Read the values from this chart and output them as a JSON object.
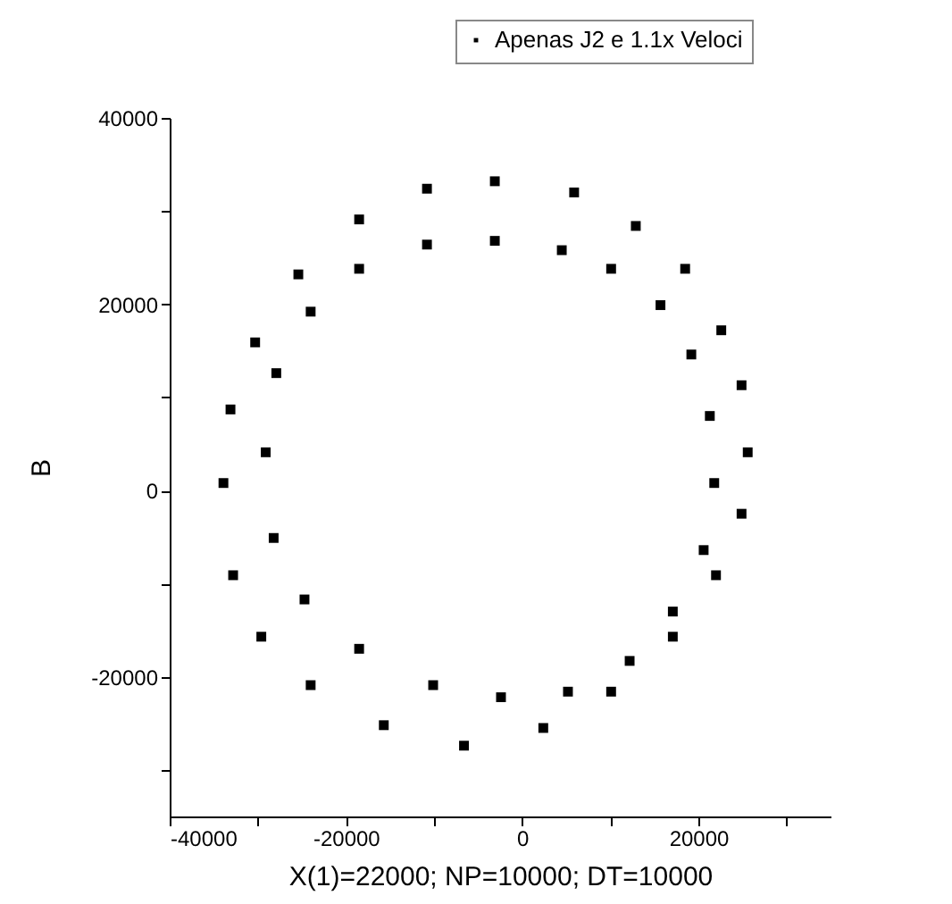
{
  "chart_data": {
    "type": "scatter",
    "xlabel": "X(1)=22000; NP=10000; DT=10000",
    "ylabel": "B",
    "xlim": [
      -40000,
      35000
    ],
    "ylim": [
      -35000,
      40000
    ],
    "xticks": [
      -40000,
      {
        "value": -30000,
        "label": null
      },
      -20000,
      {
        "value": -10000,
        "label": null
      },
      0,
      {
        "value": 10000,
        "label": null
      },
      20000,
      {
        "value": 30000,
        "label": null
      }
    ],
    "yticks": [
      {
        "value": -30000,
        "label": null
      },
      -20000,
      {
        "value": -10000,
        "label": null
      },
      0,
      {
        "value": 10000,
        "label": null
      },
      20000,
      {
        "value": 30000,
        "label": null
      },
      40000
    ],
    "grid": false,
    "legend": "top right",
    "marker": "square",
    "series": [
      {
        "name": "Apenas J2 e 1.1x Veloci",
        "color": "#000000",
        "x": [
          -3100,
          5900,
          12900,
          18500,
          22600,
          24900,
          25600,
          24900,
          22000,
          17100,
          10100,
          2400,
          -6600,
          -15700,
          -24000,
          -29600,
          -32800,
          -33900,
          -33100,
          -30300,
          -25400,
          -18500,
          -10800,
          -3100,
          4500,
          10100,
          15700,
          19200,
          21300,
          21800,
          20600,
          17100,
          12200,
          5200,
          -2400,
          -10100,
          -18500,
          -24700,
          -28200,
          -29100,
          -27900,
          -24000,
          -18500,
          -10800
        ],
        "values": [
          33200,
          32000,
          28400,
          23800,
          17200,
          11300,
          4100,
          -2500,
          -9100,
          -15700,
          -21600,
          -25500,
          -27400,
          -25200,
          -20900,
          -15700,
          -9100,
          800,
          8700,
          15900,
          23200,
          29100,
          32400,
          26800,
          25800,
          23800,
          19900,
          14600,
          8000,
          800,
          -6400,
          -13000,
          -18300,
          -21600,
          -22200,
          -20900,
          -17000,
          -11700,
          -5100,
          4100,
          12600,
          19200,
          23800,
          26400
        ]
      }
    ]
  }
}
